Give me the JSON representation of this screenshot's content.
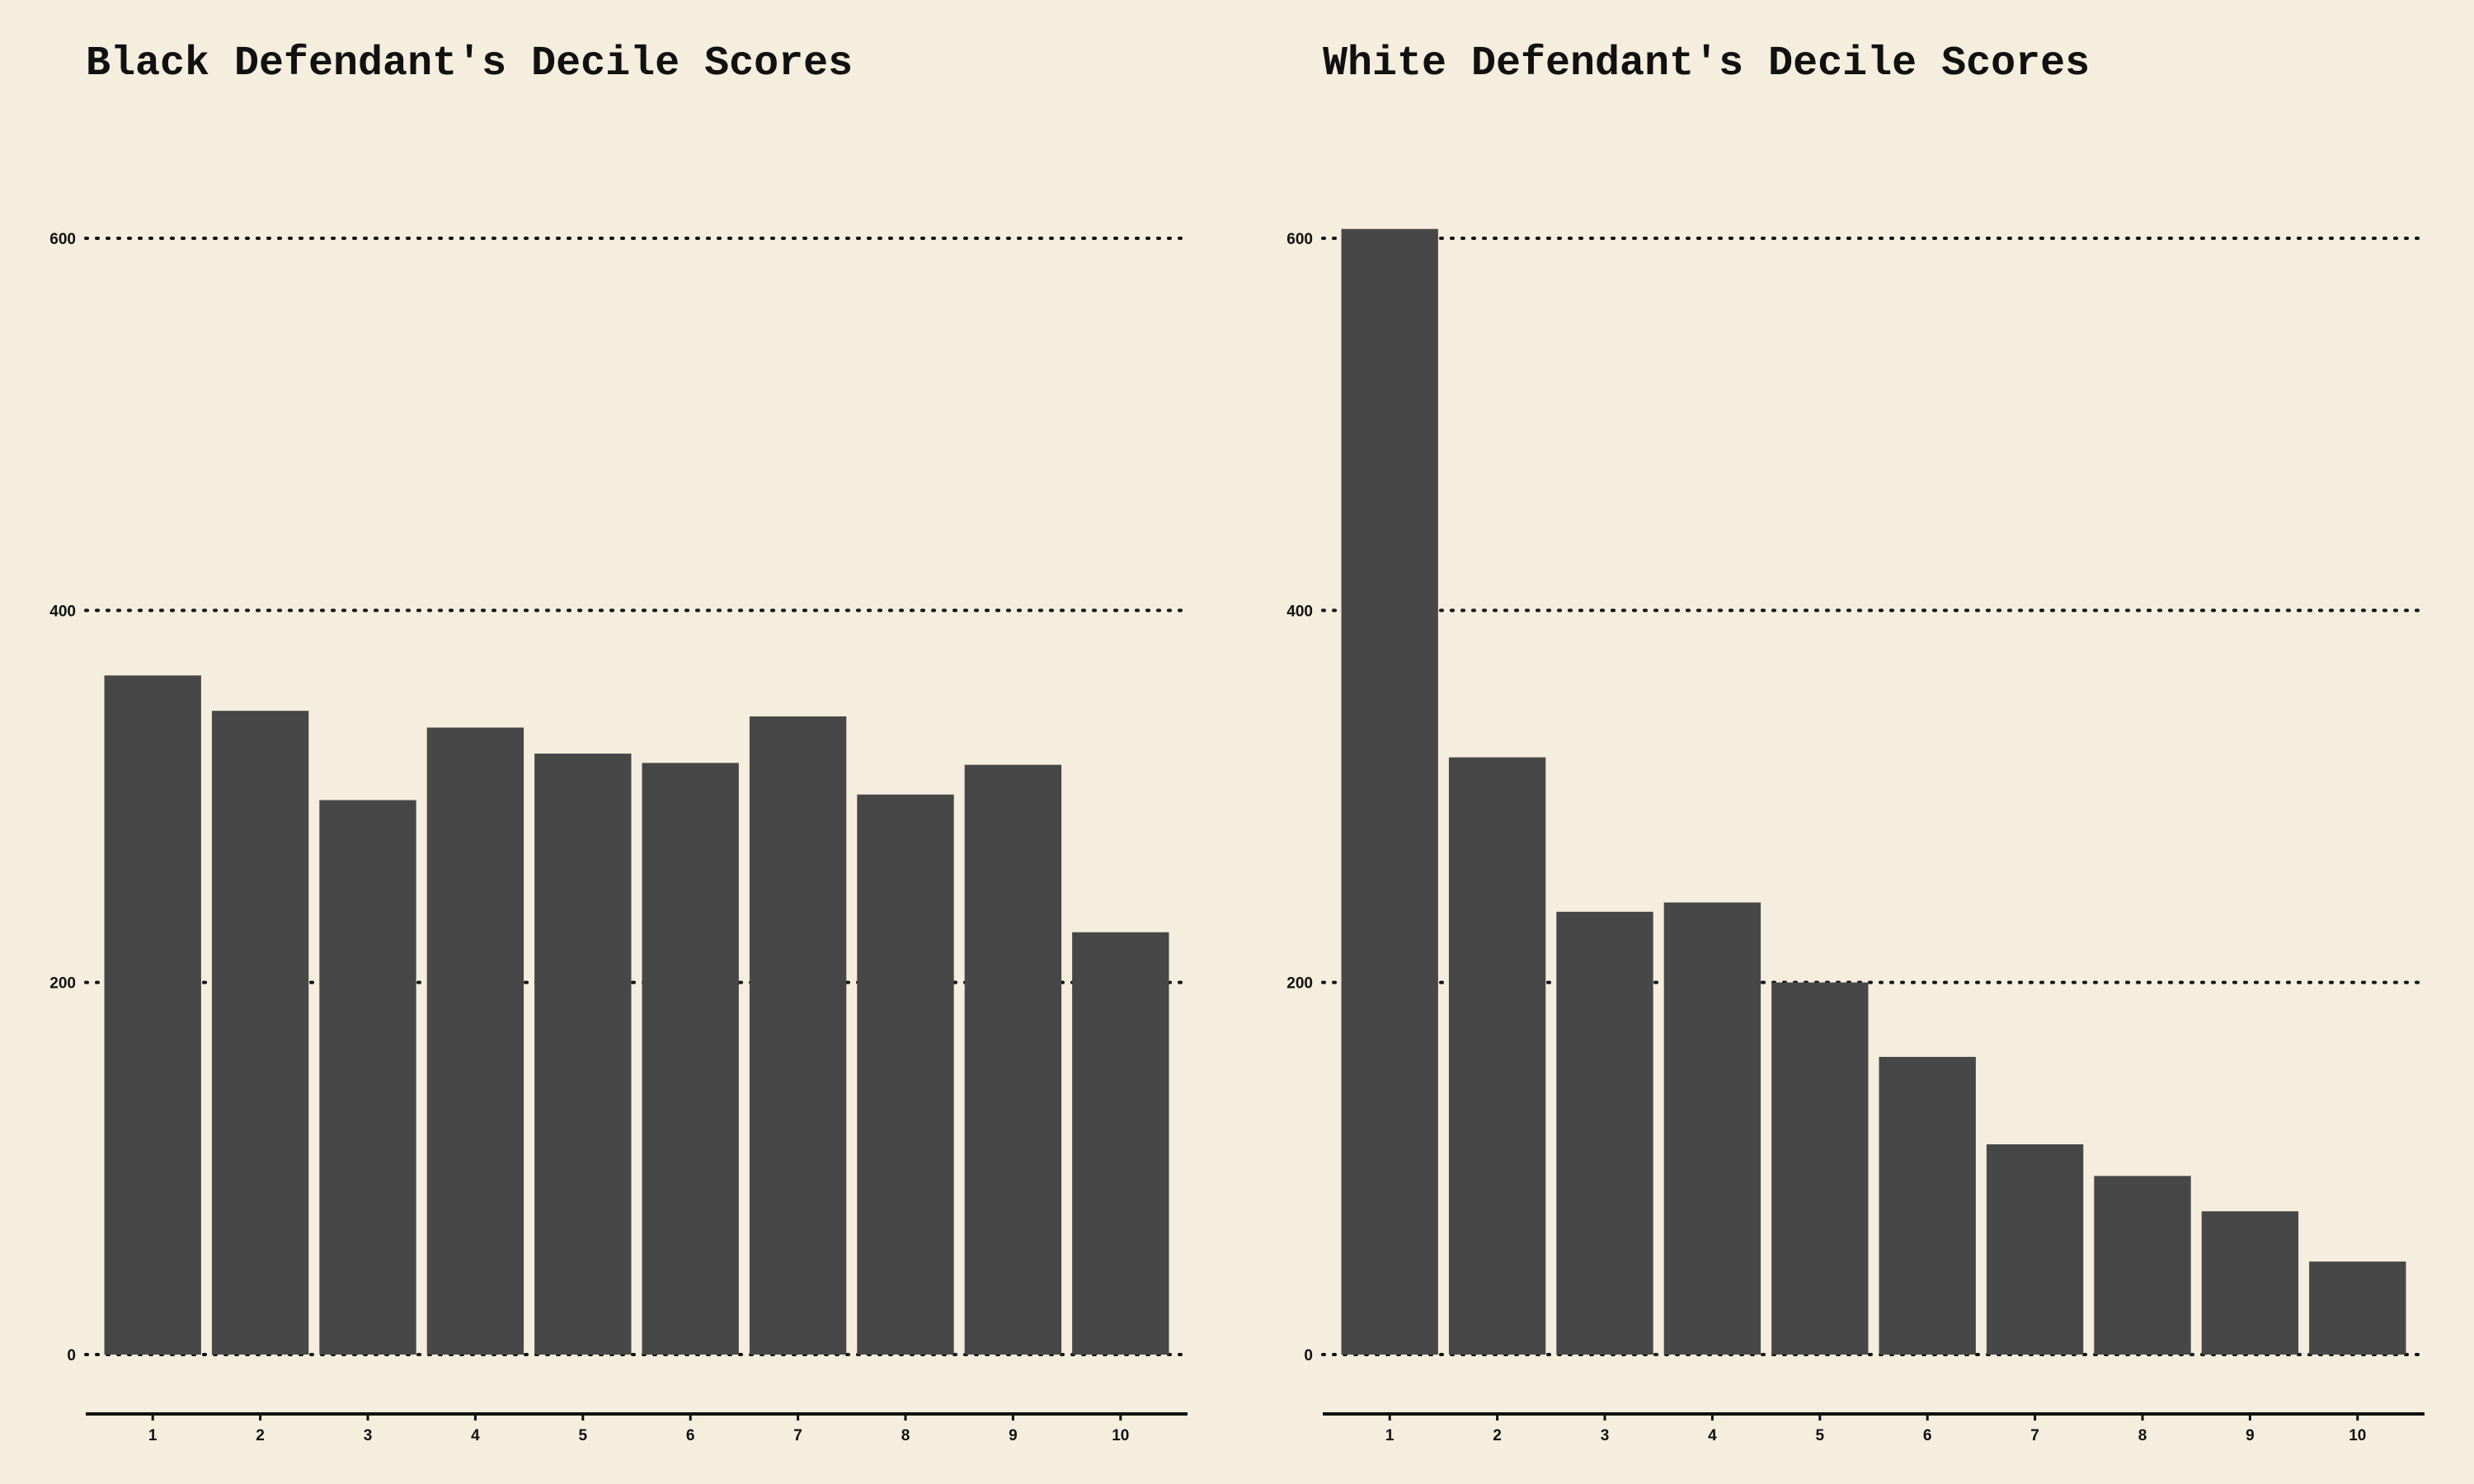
{
  "chart_data": [
    {
      "type": "bar",
      "title": "Black Defendant's Decile Scores",
      "xlabel": "",
      "ylabel": "",
      "categories": [
        "1",
        "2",
        "3",
        "4",
        "5",
        "6",
        "7",
        "8",
        "9",
        "10"
      ],
      "values": [
        365,
        346,
        298,
        337,
        323,
        318,
        343,
        301,
        317,
        227
      ],
      "ylim": [
        0,
        640
      ],
      "yticks": [
        "0",
        "200",
        "400",
        "600"
      ],
      "grid": "horizontal-dotted",
      "bar_color": "#474747"
    },
    {
      "type": "bar",
      "title": "White Defendant's Decile Scores",
      "xlabel": "",
      "ylabel": "",
      "categories": [
        "1",
        "2",
        "3",
        "4",
        "5",
        "6",
        "7",
        "8",
        "9",
        "10"
      ],
      "values": [
        605,
        321,
        238,
        243,
        200,
        160,
        113,
        96,
        77,
        50
      ],
      "ylim": [
        0,
        640
      ],
      "yticks": [
        "0",
        "200",
        "400",
        "600"
      ],
      "grid": "horizontal-dotted",
      "bar_color": "#474747"
    }
  ]
}
